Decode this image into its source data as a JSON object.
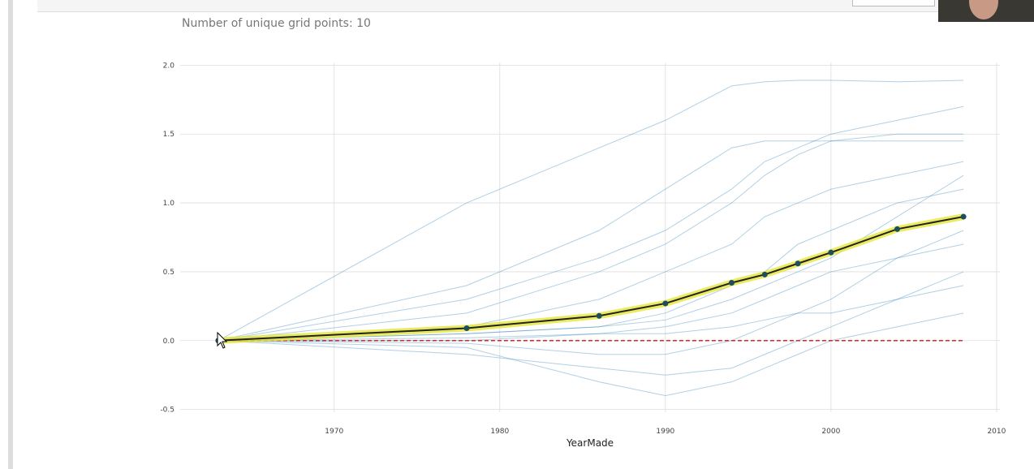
{
  "header": {
    "note": "Number of unique grid points: 10"
  },
  "chart_data": {
    "type": "line",
    "xlabel": "YearMade",
    "x": [
      1963,
      1978,
      1986,
      1990,
      1994,
      1996,
      1998,
      2000,
      2004,
      2008
    ],
    "xlim": [
      1960.7,
      2010.2
    ],
    "ylim": [
      -0.52,
      2.02
    ],
    "xticks": [
      1970,
      1980,
      1990,
      2000,
      2010
    ],
    "yticks": [
      {
        "value": 2,
        "label": "2.0"
      },
      1.5,
      {
        "value": 1,
        "label": "1.0"
      },
      0.5,
      {
        "value": 0,
        "label": "0.0"
      },
      -0.5
    ],
    "grid": true,
    "ice_lines": {
      "color": "#1f77b4",
      "values": [
        [
          0,
          0.05,
          0.1,
          0.15,
          0.3,
          0.4,
          0.5,
          0.6,
          0.9,
          1.2
        ],
        [
          0,
          0.3,
          0.6,
          0.8,
          1.1,
          1.3,
          1.4,
          1.5,
          1.6,
          1.7
        ],
        [
          0,
          1.0,
          1.4,
          1.6,
          1.85,
          1.88,
          1.89,
          1.89,
          1.88,
          1.89
        ],
        [
          0,
          -0.1,
          -0.2,
          -0.25,
          -0.2,
          -0.1,
          0,
          0.1,
          0.3,
          0.5
        ],
        [
          0,
          0.1,
          0.3,
          0.5,
          0.7,
          0.9,
          1.0,
          1.1,
          1.2,
          1.3
        ],
        [
          0,
          -0.05,
          -0.3,
          -0.4,
          -0.3,
          -0.2,
          -0.1,
          0,
          0.1,
          0.2
        ],
        [
          0,
          0.2,
          0.5,
          0.7,
          1.0,
          1.2,
          1.35,
          1.45,
          1.5,
          1.5
        ],
        [
          0,
          0,
          0.05,
          0.1,
          0.2,
          0.3,
          0.4,
          0.5,
          0.6,
          0.7
        ],
        [
          0,
          0.05,
          0.1,
          0.2,
          0.4,
          0.5,
          0.7,
          0.8,
          1.0,
          1.1
        ],
        [
          0,
          -0.02,
          -0.1,
          -0.1,
          0,
          0.1,
          0.2,
          0.3,
          0.6,
          0.8
        ],
        [
          0,
          0.4,
          0.8,
          1.1,
          1.4,
          1.45,
          1.45,
          1.45,
          1.45,
          1.45
        ],
        [
          0,
          0.02,
          0.05,
          0.05,
          0.1,
          0.15,
          0.2,
          0.2,
          0.3,
          0.4
        ]
      ]
    },
    "average": {
      "color": "#222222",
      "highlight": "#e6e63a",
      "values": [
        0,
        0.09,
        0.18,
        0.27,
        0.42,
        0.48,
        0.56,
        0.64,
        0.81,
        0.9
      ]
    },
    "baseline": {
      "value": 0,
      "color": "#d62728"
    }
  }
}
